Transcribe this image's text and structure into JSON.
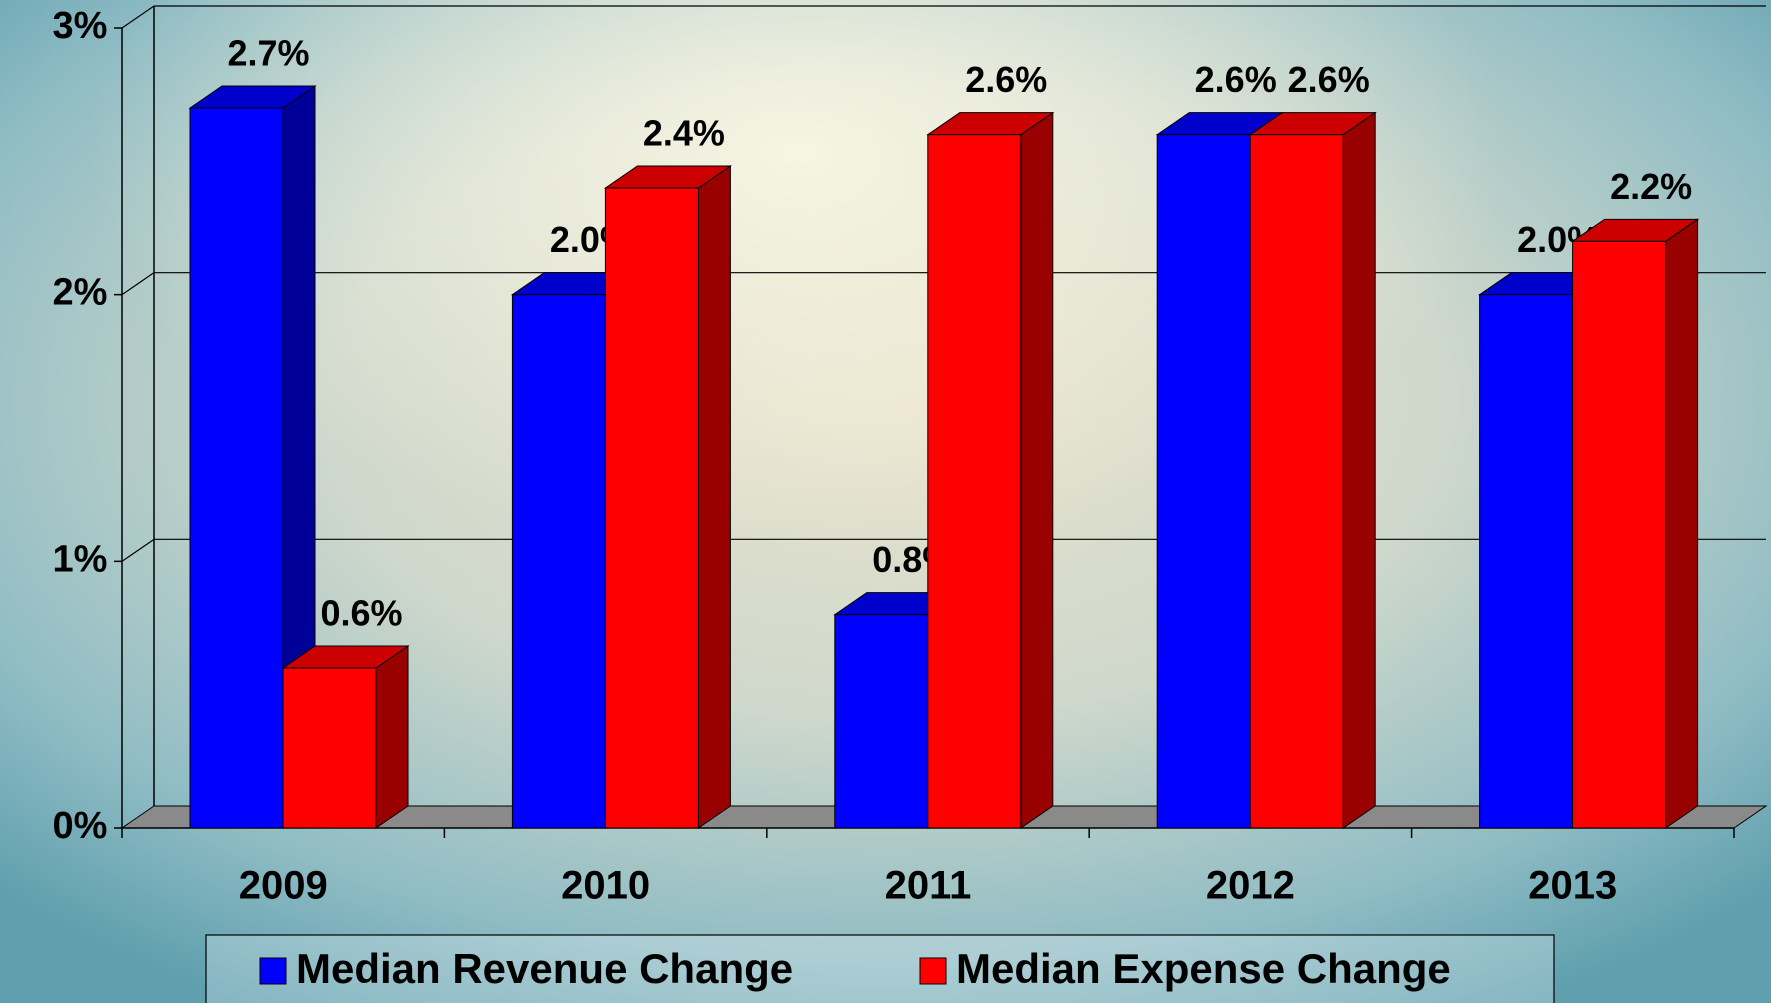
{
  "chart_data": {
    "type": "bar3d",
    "categories": [
      "2009",
      "2010",
      "2011",
      "2012",
      "2013"
    ],
    "series": [
      {
        "name": "Median Revenue Change",
        "color": "#0000ff",
        "values": [
          2.7,
          2.0,
          0.8,
          2.6,
          2.0
        ],
        "value_labels": [
          "2.7%",
          "2.0%",
          "0.8%",
          "2.6%",
          "2.0%"
        ]
      },
      {
        "name": "Median Expense Change",
        "color": "#ff0000",
        "values": [
          0.6,
          2.4,
          2.6,
          2.6,
          2.2
        ],
        "value_labels": [
          "0.6%",
          "2.4%",
          "2.6%",
          "2.6%",
          "2.2%"
        ]
      }
    ],
    "ylim": [
      0,
      3
    ],
    "yticks": [
      {
        "value": 0,
        "label": "0%"
      },
      {
        "value": 1,
        "label": "1%"
      },
      {
        "value": 2,
        "label": "2%"
      },
      {
        "value": 3,
        "label": "3%"
      }
    ],
    "grid": true,
    "legend": "bottom"
  }
}
